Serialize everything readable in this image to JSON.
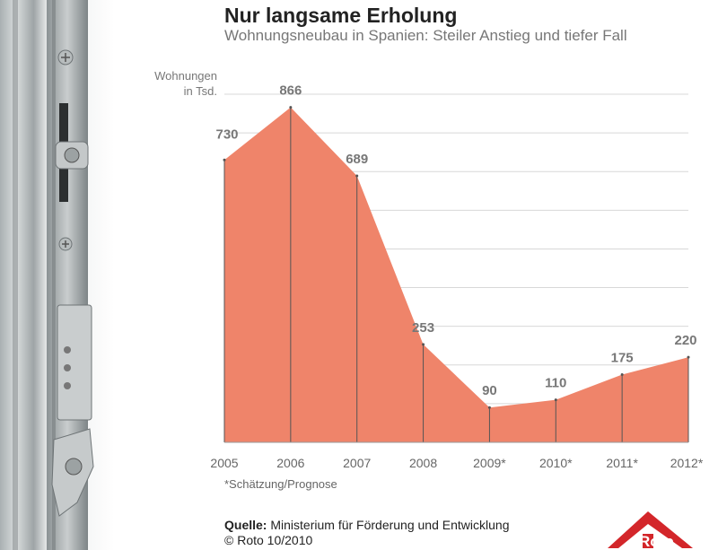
{
  "chart_data": {
    "type": "area",
    "title": "Nur langsame Erholung",
    "subtitle": "Wohnungsneubau in Spanien: Steiler Anstieg und tiefer Fall",
    "ylabel": "Wohnungen in Tsd.",
    "categories": [
      "2005",
      "2006",
      "2007",
      "2008",
      "2009*",
      "2010*",
      "2011*",
      "2012*"
    ],
    "values": [
      730,
      866,
      689,
      253,
      90,
      110,
      175,
      220
    ],
    "ylim": [
      0,
      900
    ],
    "grid": true,
    "colors": {
      "fill": "#ef846a",
      "grid": "#d8d8d8",
      "label": "#777777"
    }
  },
  "ylabel_line1": "Wohnungen",
  "ylabel_line2": "in Tsd.",
  "footnote": "*Schätzung/Prognose",
  "source_label": "Quelle:",
  "source_text": " Ministerium für Förderung und Entwicklung",
  "copyright": "© Roto 10/2010",
  "logo_text": "Roto",
  "logo_color": "#d3262a"
}
